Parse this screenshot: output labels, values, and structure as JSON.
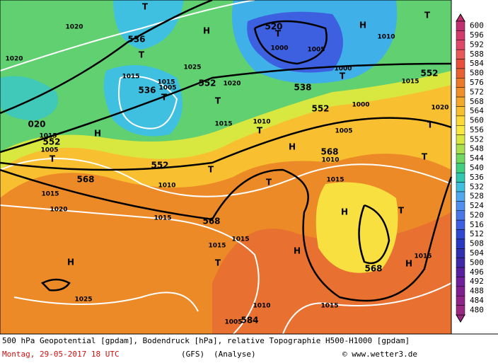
{
  "map": {
    "labels": [
      "T",
      "1020",
      "536",
      "H",
      "T",
      "1025",
      "1020",
      "1015",
      "1015",
      "1005",
      "536",
      "T",
      "552",
      "1020",
      "T",
      "1015",
      "520",
      "T",
      "1000",
      "1005",
      "H",
      "1010",
      "T",
      "1000",
      "T",
      "538",
      "552",
      "1015",
      "552",
      "1000",
      "1020",
      "1010",
      "T",
      "1005",
      "H",
      "552",
      "1015",
      "1005",
      "T",
      "020",
      "H",
      "568",
      "1010",
      "T",
      "T",
      "552",
      "T",
      "568",
      "1010",
      "T",
      "1015",
      "1015",
      "1020",
      "H",
      "T",
      "1015",
      "568",
      "1015",
      "1015",
      "H",
      "T",
      "568",
      "1015",
      "H",
      "H",
      "1025",
      "1010",
      "1015",
      "1005",
      "584"
    ]
  },
  "colorbar": {
    "ticks": [
      600,
      596,
      592,
      588,
      584,
      580,
      576,
      572,
      568,
      564,
      560,
      556,
      552,
      548,
      544,
      540,
      536,
      532,
      528,
      524,
      520,
      516,
      512,
      508,
      504,
      500,
      496,
      492,
      488,
      484,
      480
    ],
    "colors": [
      "#c03070",
      "#d03c6c",
      "#e04868",
      "#e85a5a",
      "#e8503c",
      "#e86030",
      "#ec7a28",
      "#f09028",
      "#f4a82c",
      "#f8c030",
      "#fcd838",
      "#f8e840",
      "#d8e840",
      "#a8e050",
      "#70d860",
      "#40d080",
      "#30c8b0",
      "#40c0e0",
      "#50a8f0",
      "#5090f0",
      "#4878e8",
      "#3c60e0",
      "#3048d0",
      "#2838c0",
      "#3030b0",
      "#4028a8",
      "#5820a0",
      "#70209c",
      "#802090",
      "#902488",
      "#9a2880"
    ]
  },
  "caption": {
    "line1": "500 hPa Geopotential [gpdam], Bodendruck [hPa], relative Topographie H500-H1000 [gpdam]",
    "date": "Montag, 29-05-2017  18 UTC",
    "model": "(GFS)",
    "run": "(Analyse)",
    "credit": "© www.wetter3.de"
  }
}
